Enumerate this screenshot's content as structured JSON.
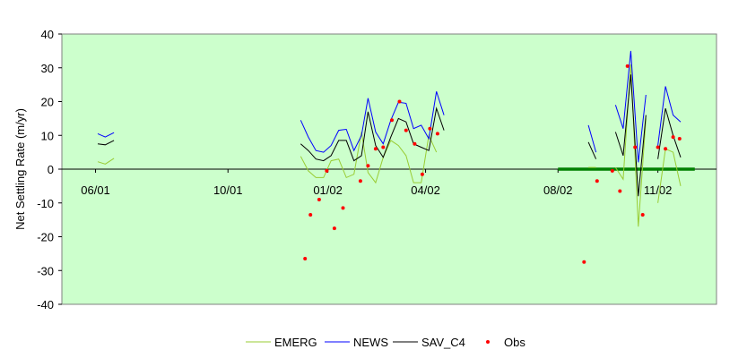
{
  "chart_data": {
    "type": "line",
    "title": "",
    "xlabel": "",
    "ylabel": "Net Settling Rate (m/yr)",
    "x_tick_labels": [
      "06/01",
      "10/01",
      "01/02",
      "04/02",
      "08/02",
      "11/02"
    ],
    "x_tick_dates": [
      "2001-06-01",
      "2001-10-01",
      "2002-01-01",
      "2002-04-01",
      "2002-08-01",
      "2002-11-01"
    ],
    "xlim": [
      "2001-05-01",
      "2002-12-25"
    ],
    "y_ticks": [
      40,
      30,
      20,
      10,
      0,
      -10,
      -20,
      -30,
      -40
    ],
    "ylim": [
      -40,
      40
    ],
    "grid": false,
    "legend_position": "bottom",
    "colors": {
      "plot_background": "#ccffcc",
      "zero_line": "#000000",
      "EMERG": "#99cc33",
      "NEWS": "#0000ff",
      "SAV_C4": "#000000",
      "Obs": "#ff0000",
      "overlay_segment": "#008000"
    },
    "series": [
      {
        "name": "EMERG",
        "segments": [
          [
            [
              "2001-06-03",
              2.2
            ],
            [
              "2001-06-10",
              1.5
            ],
            [
              "2001-06-18",
              3.2
            ]
          ],
          [
            [
              "2001-12-07",
              3.8
            ],
            [
              "2001-12-14",
              -0.5
            ],
            [
              "2001-12-21",
              -2.5
            ],
            [
              "2001-12-28",
              -2.5
            ],
            [
              "2002-01-04",
              2.5
            ],
            [
              "2002-01-11",
              3.0
            ],
            [
              "2002-01-18",
              -2.5
            ],
            [
              "2002-01-25",
              -1.5
            ],
            [
              "2002-02-01",
              11.0
            ],
            [
              "2002-02-07",
              -1.0
            ],
            [
              "2002-02-14",
              -4.0
            ],
            [
              "2002-02-21",
              3.5
            ],
            [
              "2002-02-28",
              8.5
            ],
            [
              "2002-03-07",
              7.0
            ],
            [
              "2002-03-14",
              4.0
            ],
            [
              "2002-03-21",
              -4.0
            ],
            [
              "2002-03-28",
              -4.0
            ],
            [
              "2002-04-04",
              10.0
            ],
            [
              "2002-04-11",
              5.0
            ]
          ],
          [
            [
              "2002-08-29",
              0.5
            ],
            [
              "2002-09-05",
              0.5
            ]
          ],
          [
            [
              "2002-09-23",
              0.5
            ],
            [
              "2002-09-30",
              -3.0
            ],
            [
              "2002-10-07",
              31.0
            ],
            [
              "2002-10-14",
              -17.0
            ],
            [
              "2002-10-21",
              15.0
            ]
          ],
          [
            [
              "2002-11-01",
              -10.0
            ],
            [
              "2002-11-08",
              6.0
            ],
            [
              "2002-11-15",
              5.0
            ],
            [
              "2002-11-22",
              -5.0
            ]
          ]
        ]
      },
      {
        "name": "NEWS",
        "segments": [
          [
            [
              "2001-06-03",
              10.5
            ],
            [
              "2001-06-10",
              9.5
            ],
            [
              "2001-06-18",
              10.8
            ]
          ],
          [
            [
              "2001-12-07",
              14.5
            ],
            [
              "2001-12-14",
              9.5
            ],
            [
              "2001-12-21",
              5.5
            ],
            [
              "2001-12-28",
              5.0
            ],
            [
              "2002-01-04",
              7.0
            ],
            [
              "2002-01-11",
              11.5
            ],
            [
              "2002-01-18",
              11.8
            ],
            [
              "2002-01-25",
              5.5
            ],
            [
              "2002-02-01",
              10.0
            ],
            [
              "2002-02-07",
              21.0
            ],
            [
              "2002-02-14",
              11.0
            ],
            [
              "2002-02-21",
              7.5
            ],
            [
              "2002-02-28",
              14.5
            ],
            [
              "2002-03-07",
              19.8
            ],
            [
              "2002-03-14",
              19.5
            ],
            [
              "2002-03-21",
              12.0
            ],
            [
              "2002-03-28",
              13.0
            ],
            [
              "2002-04-04",
              9.0
            ],
            [
              "2002-04-11",
              23.0
            ],
            [
              "2002-04-18",
              16.0
            ]
          ],
          [
            [
              "2002-08-29",
              13.0
            ],
            [
              "2002-09-05",
              5.0
            ]
          ],
          [
            [
              "2002-09-23",
              19.0
            ],
            [
              "2002-09-30",
              12.0
            ],
            [
              "2002-10-07",
              35.0
            ],
            [
              "2002-10-14",
              2.0
            ],
            [
              "2002-10-21",
              22.0
            ]
          ],
          [
            [
              "2002-11-01",
              7.0
            ],
            [
              "2002-11-08",
              24.5
            ],
            [
              "2002-11-15",
              16.0
            ],
            [
              "2002-11-22",
              14.0
            ]
          ]
        ]
      },
      {
        "name": "SAV_C4",
        "segments": [
          [
            [
              "2001-06-03",
              7.5
            ],
            [
              "2001-06-10",
              7.2
            ],
            [
              "2001-06-18",
              8.5
            ]
          ],
          [
            [
              "2001-12-07",
              7.5
            ],
            [
              "2001-12-14",
              5.5
            ],
            [
              "2001-12-21",
              3.0
            ],
            [
              "2001-12-28",
              2.5
            ],
            [
              "2002-01-04",
              4.0
            ],
            [
              "2002-01-11",
              8.5
            ],
            [
              "2002-01-18",
              8.5
            ],
            [
              "2002-01-25",
              2.5
            ],
            [
              "2002-02-01",
              4.0
            ],
            [
              "2002-02-07",
              17.0
            ],
            [
              "2002-02-14",
              7.0
            ],
            [
              "2002-02-21",
              3.5
            ],
            [
              "2002-02-28",
              9.5
            ],
            [
              "2002-03-07",
              15.0
            ],
            [
              "2002-03-14",
              14.0
            ],
            [
              "2002-03-21",
              7.5
            ],
            [
              "2002-03-28",
              6.5
            ],
            [
              "2002-04-04",
              5.5
            ],
            [
              "2002-04-11",
              18.0
            ],
            [
              "2002-04-18",
              11.5
            ]
          ],
          [
            [
              "2002-08-29",
              8.0
            ],
            [
              "2002-09-05",
              3.0
            ]
          ],
          [
            [
              "2002-09-23",
              11.0
            ],
            [
              "2002-09-30",
              4.0
            ],
            [
              "2002-10-07",
              28.0
            ],
            [
              "2002-10-14",
              -8.0
            ],
            [
              "2002-10-21",
              16.0
            ]
          ],
          [
            [
              "2002-11-01",
              3.0
            ],
            [
              "2002-11-08",
              18.0
            ],
            [
              "2002-11-15",
              10.0
            ],
            [
              "2002-11-22",
              3.5
            ]
          ]
        ]
      }
    ],
    "scatter": {
      "name": "Obs",
      "points": [
        [
          "2001-12-11",
          -26.5
        ],
        [
          "2001-12-16",
          -13.5
        ],
        [
          "2001-12-24",
          -9.0
        ],
        [
          "2001-12-31",
          -0.5
        ],
        [
          "2002-01-07",
          -17.5
        ],
        [
          "2002-01-15",
          -11.5
        ],
        [
          "2002-01-31",
          -3.5
        ],
        [
          "2002-02-07",
          1.0
        ],
        [
          "2002-02-14",
          6.0
        ],
        [
          "2002-02-21",
          6.5
        ],
        [
          "2002-03-01",
          14.5
        ],
        [
          "2002-03-08",
          20.0
        ],
        [
          "2002-03-14",
          11.5
        ],
        [
          "2002-03-22",
          7.5
        ],
        [
          "2002-03-29",
          -1.5
        ],
        [
          "2002-04-05",
          12.0
        ],
        [
          "2002-04-12",
          10.5
        ],
        [
          "2002-08-25",
          -27.5
        ],
        [
          "2002-09-06",
          -3.5
        ],
        [
          "2002-09-20",
          -0.5
        ],
        [
          "2002-09-27",
          -6.5
        ],
        [
          "2002-10-04",
          30.5
        ],
        [
          "2002-10-11",
          6.5
        ],
        [
          "2002-10-18",
          -13.5
        ],
        [
          "2002-11-01",
          6.5
        ],
        [
          "2002-11-08",
          6.0
        ],
        [
          "2002-11-15",
          9.5
        ],
        [
          "2002-11-21",
          9.0
        ]
      ]
    },
    "overlay_segment": {
      "start": "2002-08-01",
      "end": "2002-12-05",
      "y": 0
    }
  }
}
